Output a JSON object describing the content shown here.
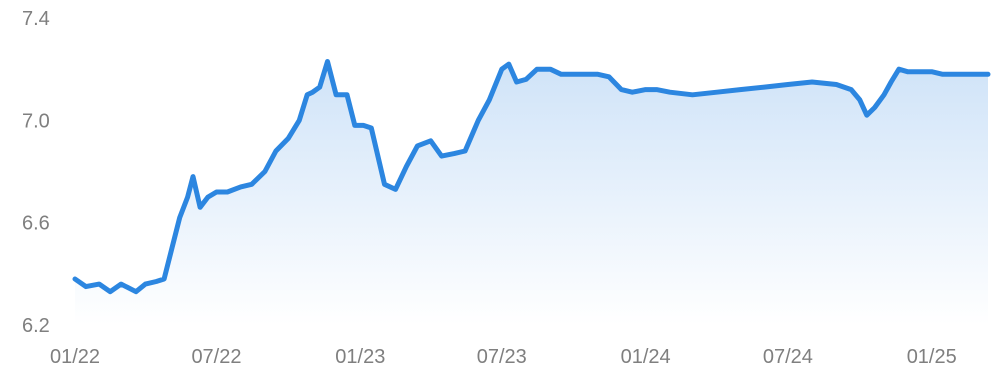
{
  "chart_data": {
    "type": "area",
    "title": "",
    "xlabel": "",
    "ylabel": "",
    "x_ticks": [
      "01/22",
      "07/22",
      "01/23",
      "07/23",
      "01/24",
      "07/24",
      "01/25"
    ],
    "y_ticks": [
      "6.2",
      "6.6",
      "7.0",
      "7.4"
    ],
    "ylim": [
      6.2,
      7.4
    ],
    "xlim": [
      "2022-01-01",
      "2025-03-14"
    ],
    "grid": false,
    "legend": "none",
    "colors": {
      "line": "#2c86e0",
      "fill_top": "#cfe3f8",
      "fill_bottom": "#ffffff",
      "tick_text": "#7f7f7f"
    },
    "series": [
      {
        "x": [
          "2022-01-01",
          "2022-01-15",
          "2022-02-01",
          "2022-02-15",
          "2022-03-01",
          "2022-03-20",
          "2022-04-01",
          "2022-04-15",
          "2022-04-25",
          "2022-05-05",
          "2022-05-15",
          "2022-05-25",
          "2022-06-01",
          "2022-06-10",
          "2022-06-20",
          "2022-07-01",
          "2022-07-15",
          "2022-08-01",
          "2022-08-15",
          "2022-09-01",
          "2022-09-15",
          "2022-10-01",
          "2022-10-15",
          "2022-10-25",
          "2022-11-01",
          "2022-11-10",
          "2022-11-20",
          "2022-12-01",
          "2022-12-15",
          "2022-12-25",
          "2023-01-05",
          "2023-01-15",
          "2023-02-01",
          "2023-02-15",
          "2023-03-01",
          "2023-03-15",
          "2023-04-01",
          "2023-04-15",
          "2023-05-01",
          "2023-05-15",
          "2023-06-01",
          "2023-06-15",
          "2023-07-01",
          "2023-07-10",
          "2023-07-20",
          "2023-08-01",
          "2023-08-15",
          "2023-09-01",
          "2023-09-15",
          "2023-10-01",
          "2023-10-15",
          "2023-11-01",
          "2023-11-15",
          "2023-12-01",
          "2023-12-15",
          "2024-01-01",
          "2024-01-15",
          "2024-02-01",
          "2024-03-01",
          "2024-04-01",
          "2024-05-01",
          "2024-06-01",
          "2024-07-01",
          "2024-08-01",
          "2024-09-01",
          "2024-09-20",
          "2024-10-01",
          "2024-10-10",
          "2024-10-20",
          "2024-11-01",
          "2024-11-10",
          "2024-11-20",
          "2024-12-01",
          "2024-12-15",
          "2025-01-01",
          "2025-01-15",
          "2025-02-01",
          "2025-02-15",
          "2025-03-01",
          "2025-03-14"
        ],
        "y": [
          6.38,
          6.35,
          6.36,
          6.33,
          6.36,
          6.33,
          6.36,
          6.37,
          6.38,
          6.5,
          6.62,
          6.7,
          6.78,
          6.66,
          6.7,
          6.72,
          6.72,
          6.74,
          6.75,
          6.8,
          6.88,
          6.93,
          7.0,
          7.1,
          7.11,
          7.13,
          7.23,
          7.1,
          7.1,
          6.98,
          6.98,
          6.97,
          6.75,
          6.73,
          6.82,
          6.9,
          6.92,
          6.86,
          6.87,
          6.88,
          7.0,
          7.08,
          7.2,
          7.22,
          7.15,
          7.16,
          7.2,
          7.2,
          7.18,
          7.18,
          7.18,
          7.18,
          7.17,
          7.12,
          7.11,
          7.12,
          7.12,
          7.11,
          7.1,
          7.11,
          7.12,
          7.13,
          7.14,
          7.15,
          7.14,
          7.12,
          7.08,
          7.02,
          7.05,
          7.1,
          7.15,
          7.2,
          7.19,
          7.19,
          7.19,
          7.18,
          7.18,
          7.18,
          7.18,
          7.18
        ]
      }
    ]
  }
}
